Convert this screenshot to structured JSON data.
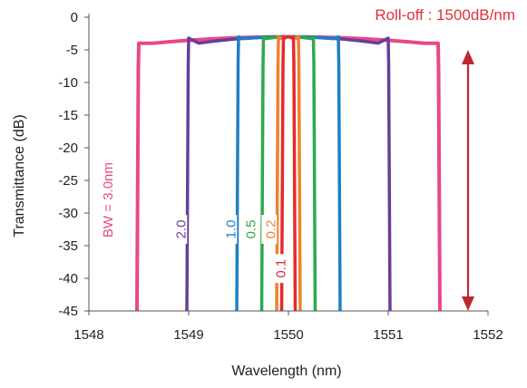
{
  "chart_data": {
    "type": "line",
    "xlabel": "Wavelength (nm)",
    "ylabel": "Transmittance (dB)",
    "xlim": [
      1548,
      1552
    ],
    "ylim": [
      -45,
      0
    ],
    "x_ticks": [
      "1548",
      "1549",
      "1550",
      "1551",
      "1552"
    ],
    "y_ticks": [
      "0",
      "-5",
      "-10",
      "-15",
      "-20",
      "-25",
      "-30",
      "-35",
      "-40",
      "-45"
    ],
    "grid": false,
    "annotation": {
      "text": "Roll-off : 1500dB/nm",
      "color": "#e0303a"
    },
    "arrow": {
      "from_y": -5,
      "to_y": -45,
      "x": 1551.8,
      "color": "#c0282e"
    },
    "center_wavelength": 1550,
    "passband_level": -3,
    "series": [
      {
        "label": "BW = 3.0nm",
        "bandwidth": 3.0,
        "color": "#e8488a",
        "edge_level": -4
      },
      {
        "label": "2.0",
        "bandwidth": 2.0,
        "color": "#6a3d9a",
        "edge_level": -3.2
      },
      {
        "label": "1.0",
        "bandwidth": 1.0,
        "color": "#1f7fc6",
        "edge_level": -3
      },
      {
        "label": "0.5",
        "bandwidth": 0.5,
        "color": "#2ea84f",
        "edge_level": -3
      },
      {
        "label": "0.2",
        "bandwidth": 0.2,
        "color": "#f08030",
        "edge_level": -3
      },
      {
        "label": "0.1",
        "bandwidth": 0.1,
        "color": "#e8282c",
        "edge_level": -3
      }
    ]
  }
}
